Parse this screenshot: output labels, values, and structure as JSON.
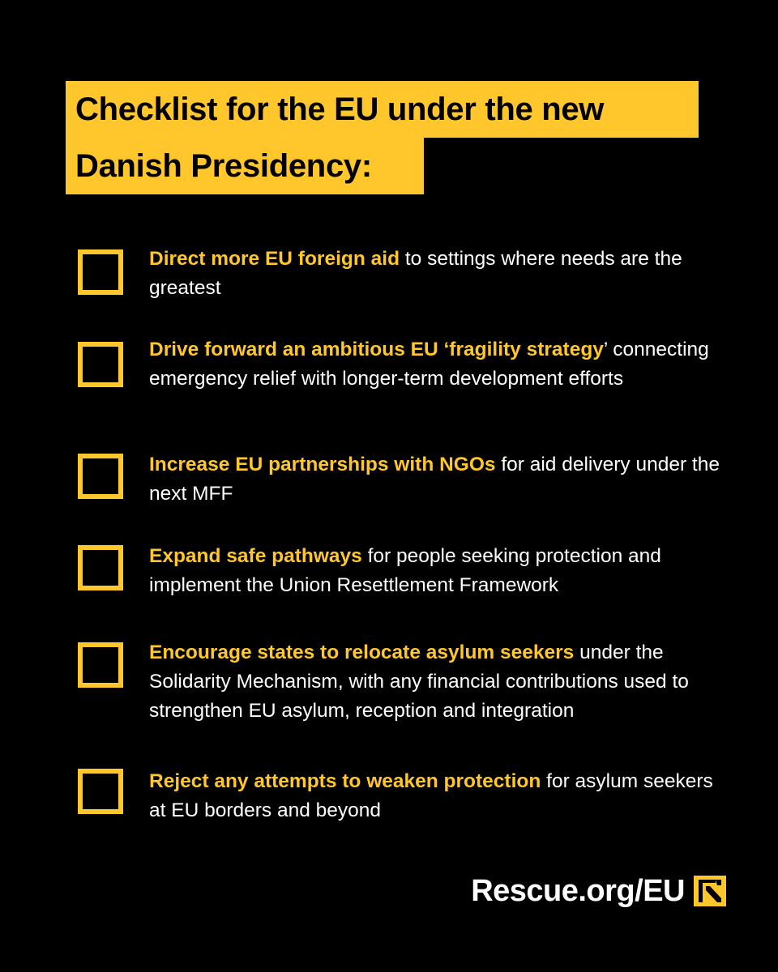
{
  "title": {
    "line1": "Checklist for the EU under the new",
    "line2": "Danish Presidency:"
  },
  "items": [
    {
      "bold": "Direct more EU foreign aid",
      "rest": " to settings where needs are the greatest",
      "checked": false
    },
    {
      "bold": "Drive forward an ambitious EU ‘fragility strategy",
      "rest": "’ connecting emergency relief with longer-term development efforts",
      "checked": false
    },
    {
      "bold": "Increase EU partnerships with NGOs",
      "rest": " for aid delivery under the next MFF",
      "checked": false
    },
    {
      "bold": "Expand safe pathways",
      "rest": " for people seeking protection and implement the Union Resettlement Framework",
      "checked": false
    },
    {
      "bold": "Encourage states to relocate asylum seekers",
      "rest": " under the Solidarity Mechanism, with any financial contributions used to strengthen EU asylum, reception and integration",
      "checked": false
    },
    {
      "bold": "Reject any attempts to weaken protection",
      "rest": " for asylum seekers at EU borders and beyond",
      "checked": false
    }
  ],
  "footer": {
    "url": "Rescue.org/EU",
    "logo_icon": "irc-logo-icon"
  },
  "colors": {
    "accent": "#FFC72C",
    "background": "#000000",
    "text": "#FFFFFF"
  }
}
